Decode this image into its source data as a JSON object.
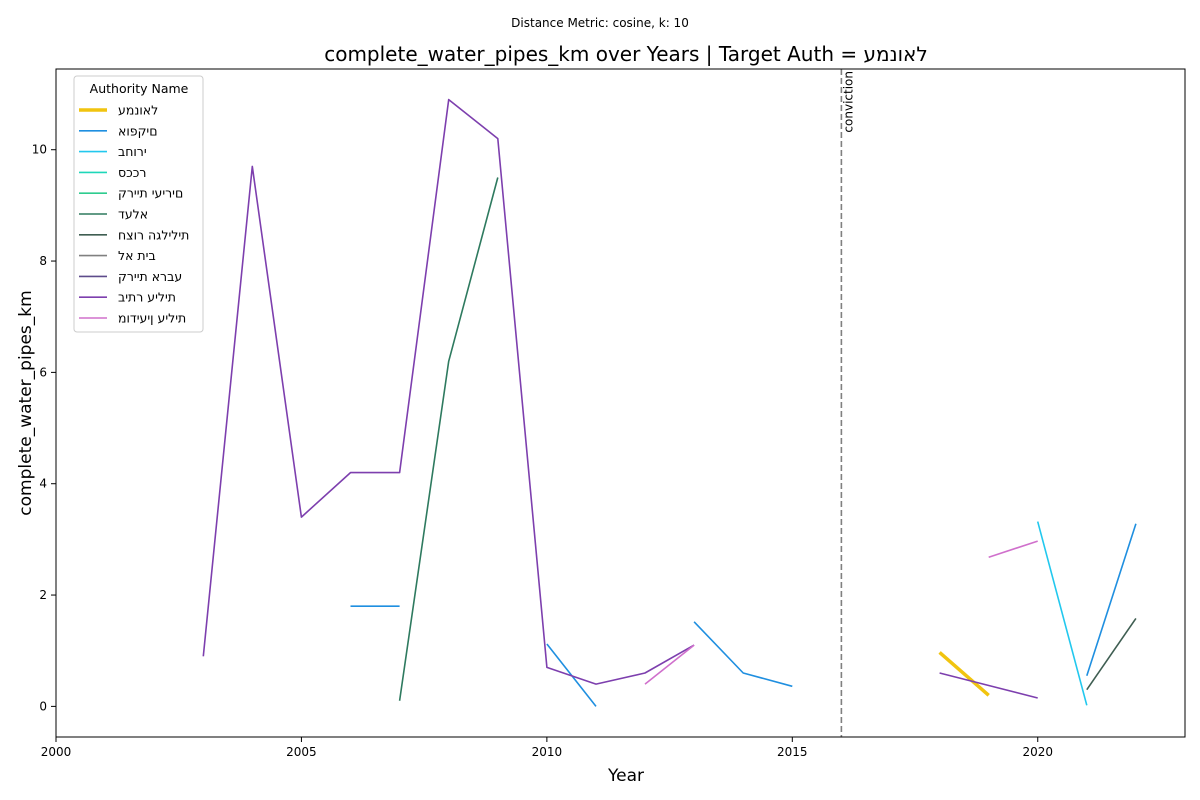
{
  "suptitle": "Distance Metric: cosine, k: 10",
  "chart_data": {
    "type": "line",
    "title": "complete_water_pipes_km over Years | Target Auth = לאונמע",
    "xlabel": "Year",
    "ylabel": "complete_water_pipes_km",
    "xlim": [
      2000,
      2023
    ],
    "ylim": [
      -0.55,
      11.45
    ],
    "xticks": [
      2000,
      2005,
      2010,
      2015,
      2020
    ],
    "yticks": [
      0,
      2,
      4,
      6,
      8,
      10
    ],
    "grid": false,
    "legend": {
      "title": "Authority Name",
      "placement": "top-left"
    },
    "vline": {
      "x": 2016,
      "label": "conviction",
      "color": "#808080",
      "style": "dashed"
    },
    "series": [
      {
        "name": "לאונמע",
        "color": "#f1c40f",
        "width": 3.5,
        "segments": [
          [
            [
              2018,
              0.97
            ],
            [
              2019,
              0.2
            ]
          ]
        ]
      },
      {
        "name": "םיקפוא",
        "color": "#1f8fe0",
        "width": 1.6,
        "segments": [
          [
            [
              2006,
              1.8
            ],
            [
              2007,
              1.8
            ]
          ],
          [
            [
              2010,
              1.12
            ],
            [
              2011,
              0.0
            ]
          ],
          [
            [
              2013,
              1.52
            ],
            [
              2014,
              0.6
            ],
            [
              2015,
              0.36
            ]
          ],
          [
            [
              2021,
              0.55
            ],
            [
              2022,
              3.28
            ]
          ]
        ]
      },
      {
        "name": "ירוחב",
        "color": "#22c8ee",
        "width": 1.6,
        "segments": [
          [
            [
              2020,
              3.32
            ],
            [
              2021,
              0.02
            ]
          ]
        ]
      },
      {
        "name": "רככס",
        "color": "#1ed7b9",
        "width": 1.6,
        "segments": []
      },
      {
        "name": "םיריעי תיירק",
        "color": "#2ecc8f",
        "width": 1.6,
        "segments": []
      },
      {
        "name": "אלעד",
        "color": "#2e7a5f",
        "width": 1.6,
        "segments": [
          [
            [
              2007,
              0.1
            ],
            [
              2008,
              6.2
            ],
            [
              2009,
              9.5
            ]
          ]
        ]
      },
      {
        "name": "תילילגה רוצח",
        "color": "#3f5e52",
        "width": 1.6,
        "segments": [
          [
            [
              2021,
              0.3
            ],
            [
              2022,
              1.58
            ]
          ]
        ]
      },
      {
        "name": "בית אל",
        "color": "#808080",
        "width": 1.6,
        "segments": []
      },
      {
        "name": "עברא תיירק",
        "color": "#5e4b8b",
        "width": 1.6,
        "segments": []
      },
      {
        "name": "תיליע רתיב",
        "color": "#7d3fae",
        "width": 1.6,
        "segments": [
          [
            [
              2003,
              0.9
            ],
            [
              2004,
              9.7
            ],
            [
              2005,
              3.4
            ],
            [
              2006,
              4.2
            ],
            [
              2007,
              4.2
            ],
            [
              2008,
              10.9
            ],
            [
              2009,
              10.2
            ],
            [
              2010,
              0.7
            ],
            [
              2011,
              0.4
            ],
            [
              2012,
              0.6
            ],
            [
              2013,
              1.1
            ]
          ],
          [
            [
              2018,
              0.6
            ],
            [
              2020,
              0.15
            ]
          ]
        ]
      },
      {
        "name": "תיליע ןיעידומ",
        "color": "#d070cc",
        "width": 1.6,
        "segments": [
          [
            [
              2012,
              0.4
            ],
            [
              2013,
              1.1
            ]
          ],
          [
            [
              2019,
              2.68
            ],
            [
              2020,
              2.97
            ]
          ]
        ]
      }
    ]
  }
}
